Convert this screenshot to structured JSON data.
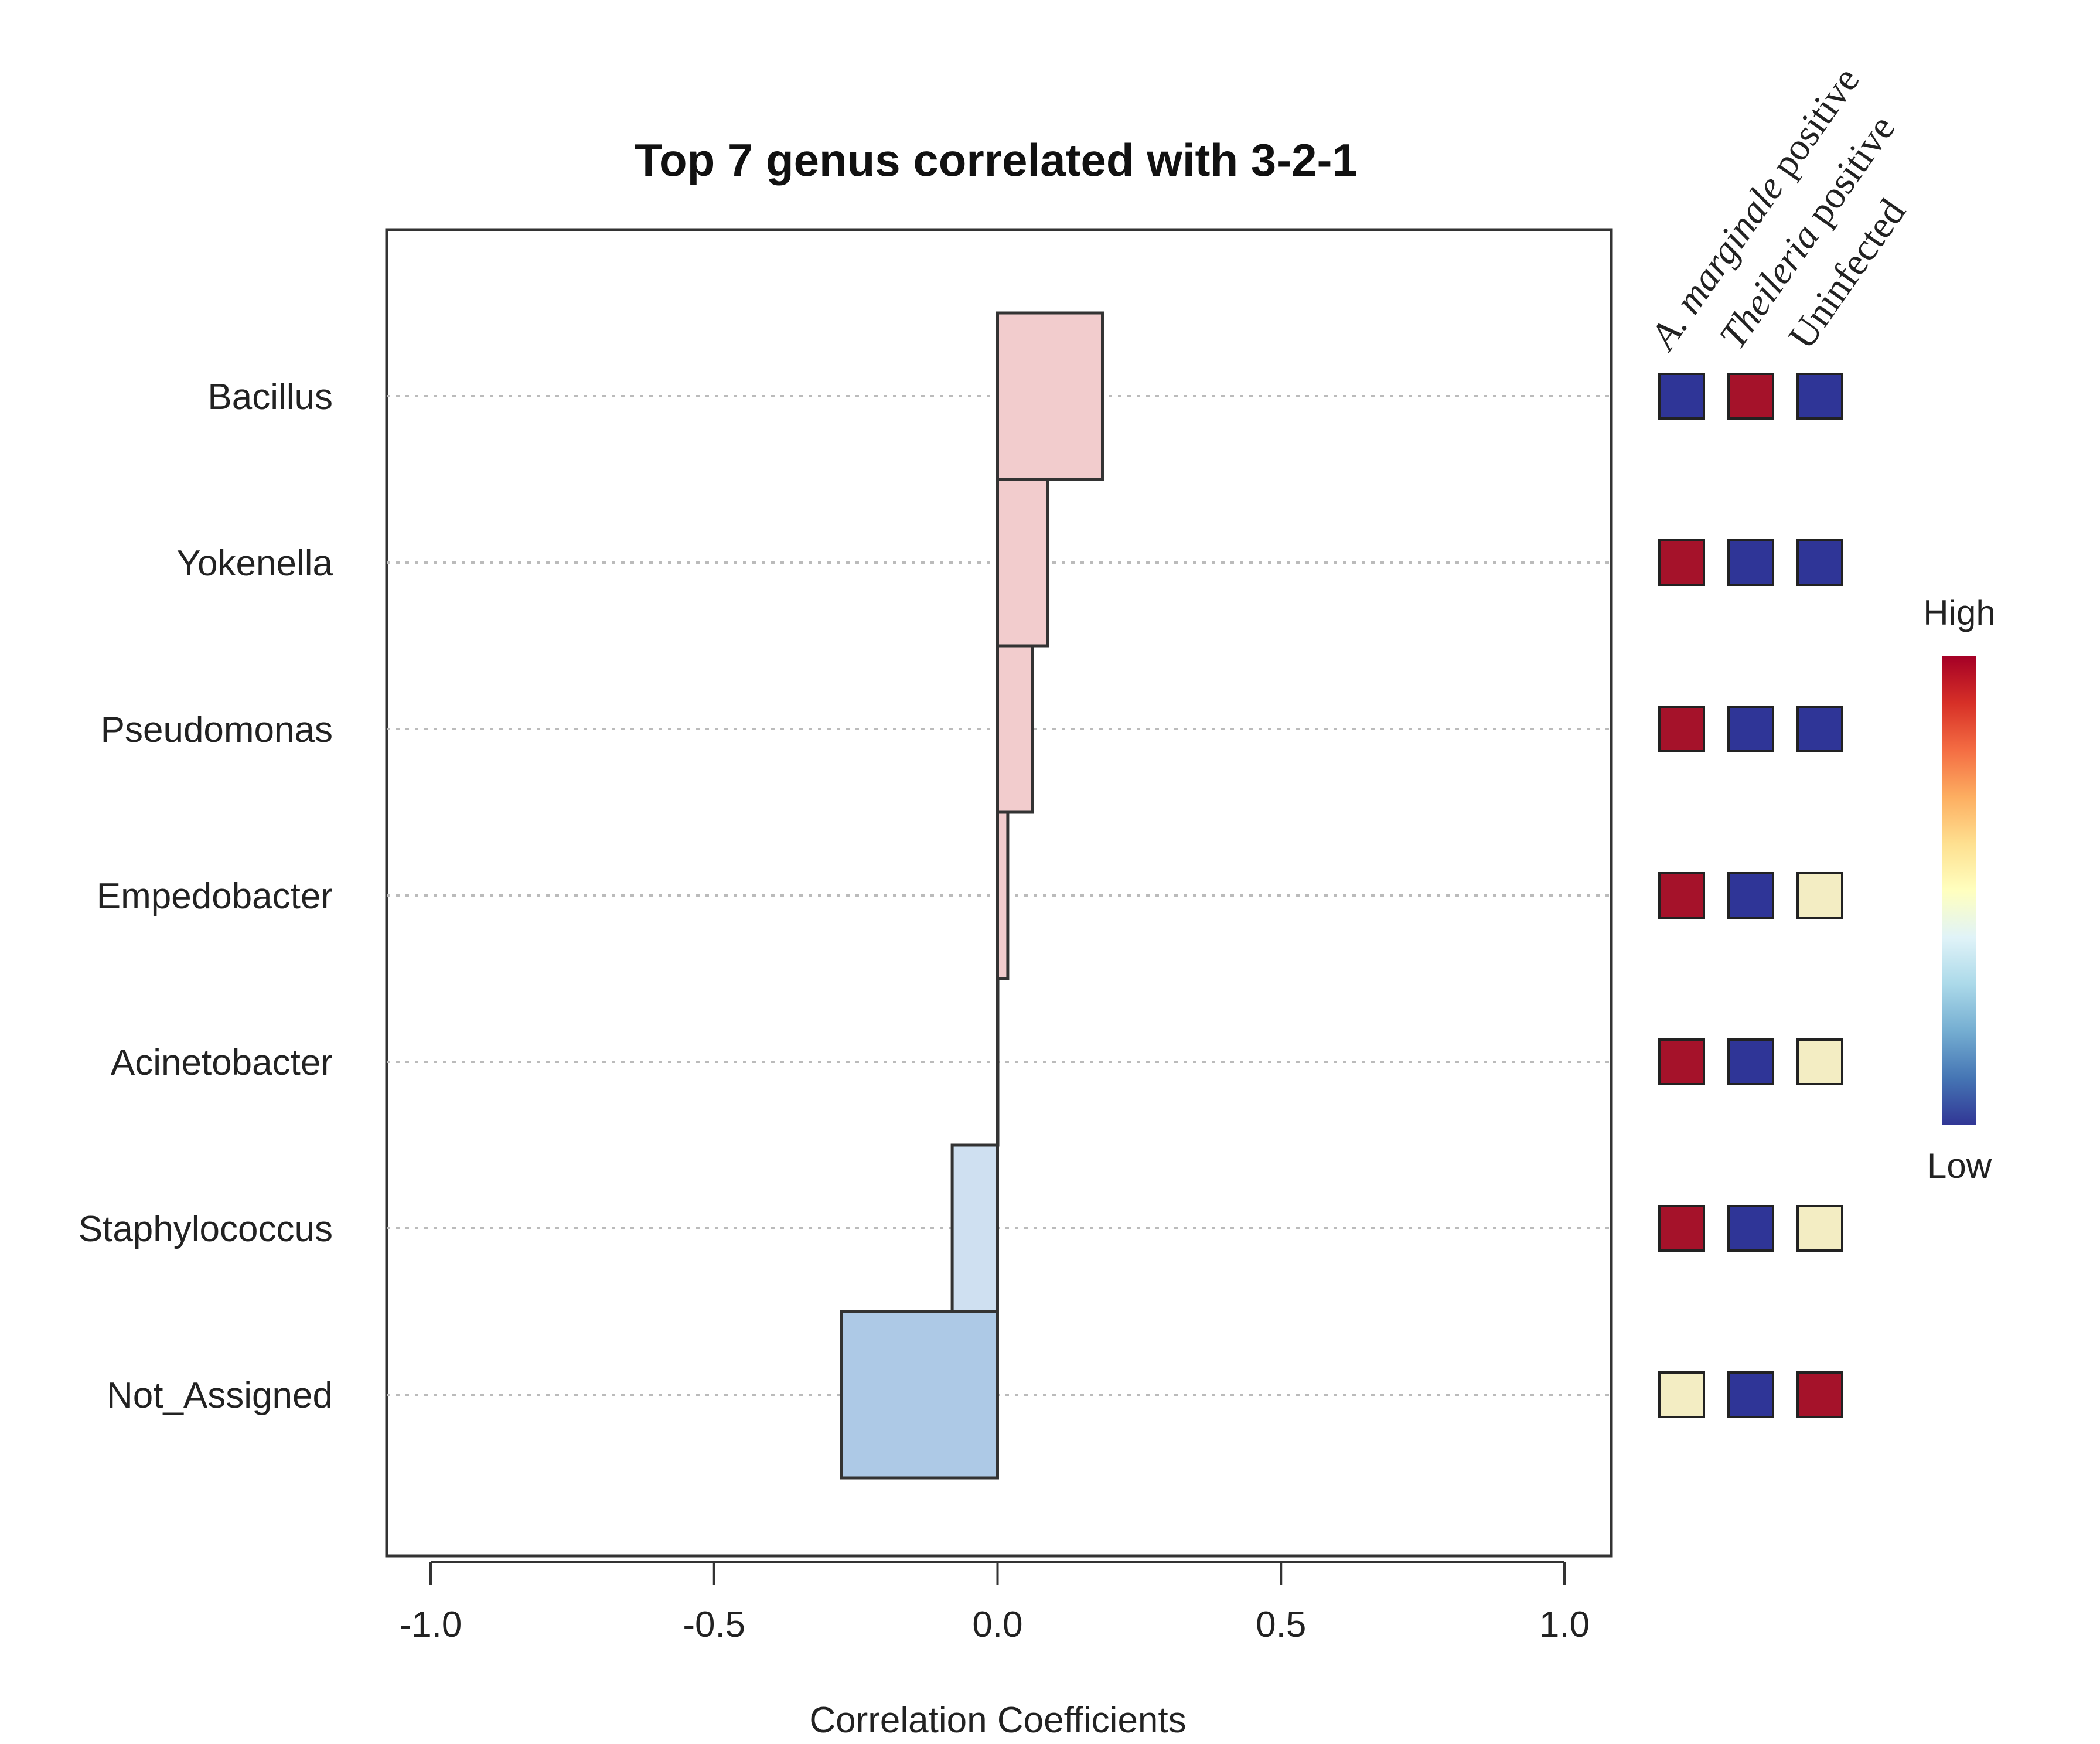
{
  "chart_data": {
    "type": "bar",
    "orientation": "horizontal",
    "title": "Top 7 genus correlated with 3-2-1",
    "xlabel": "Correlation Coefficients",
    "ylabel": "",
    "xlim": [
      -1.0,
      1.0
    ],
    "x_ticks": [
      -1.0,
      -0.5,
      0.0,
      0.5,
      1.0
    ],
    "x_tick_labels": [
      "-1.0",
      "-0.5",
      "0.0",
      "0.5",
      "1.0"
    ],
    "categories": [
      "Bacillus",
      "Yokenella",
      "Pseudomonas",
      "Empedobacter",
      "Acinetobacter",
      "Staphylococcus",
      "Not_Assigned"
    ],
    "values": [
      0.185,
      0.088,
      0.062,
      0.018,
      0.0,
      -0.08,
      -0.275
    ],
    "bar_colors": {
      "positive": "#f2cccd",
      "small_negative": "#cfe0f1",
      "large_negative": "#adc9e6"
    },
    "grid": "horizontal dotted",
    "group_heatmap": {
      "columns": [
        "A. marginale positive",
        "Theileria positive",
        "Uninfected"
      ],
      "column_label_parts": [
        {
          "italic": "A. marginale",
          "plain": " positive"
        },
        {
          "italic": "Theileria",
          "plain": " positive"
        },
        {
          "italic": "",
          "plain": "Uninfected"
        }
      ],
      "levels": [
        [
          "low",
          "high",
          "low"
        ],
        [
          "high",
          "low",
          "low"
        ],
        [
          "high",
          "low",
          "low"
        ],
        [
          "high",
          "low",
          "mid"
        ],
        [
          "high",
          "low",
          "mid"
        ],
        [
          "high",
          "low",
          "mid"
        ],
        [
          "mid",
          "low",
          "high"
        ]
      ],
      "level_colors": {
        "high": "#a5122a",
        "low": "#2f3597",
        "mid": "#f3edc3"
      }
    },
    "color_key": {
      "high_label": "High",
      "low_label": "Low",
      "gradient": [
        "#313695",
        "#4575b4",
        "#74add1",
        "#abd9e9",
        "#e0f3f8",
        "#ffffbf",
        "#fee090",
        "#fdae61",
        "#f46d43",
        "#d73027",
        "#a50026"
      ]
    }
  }
}
